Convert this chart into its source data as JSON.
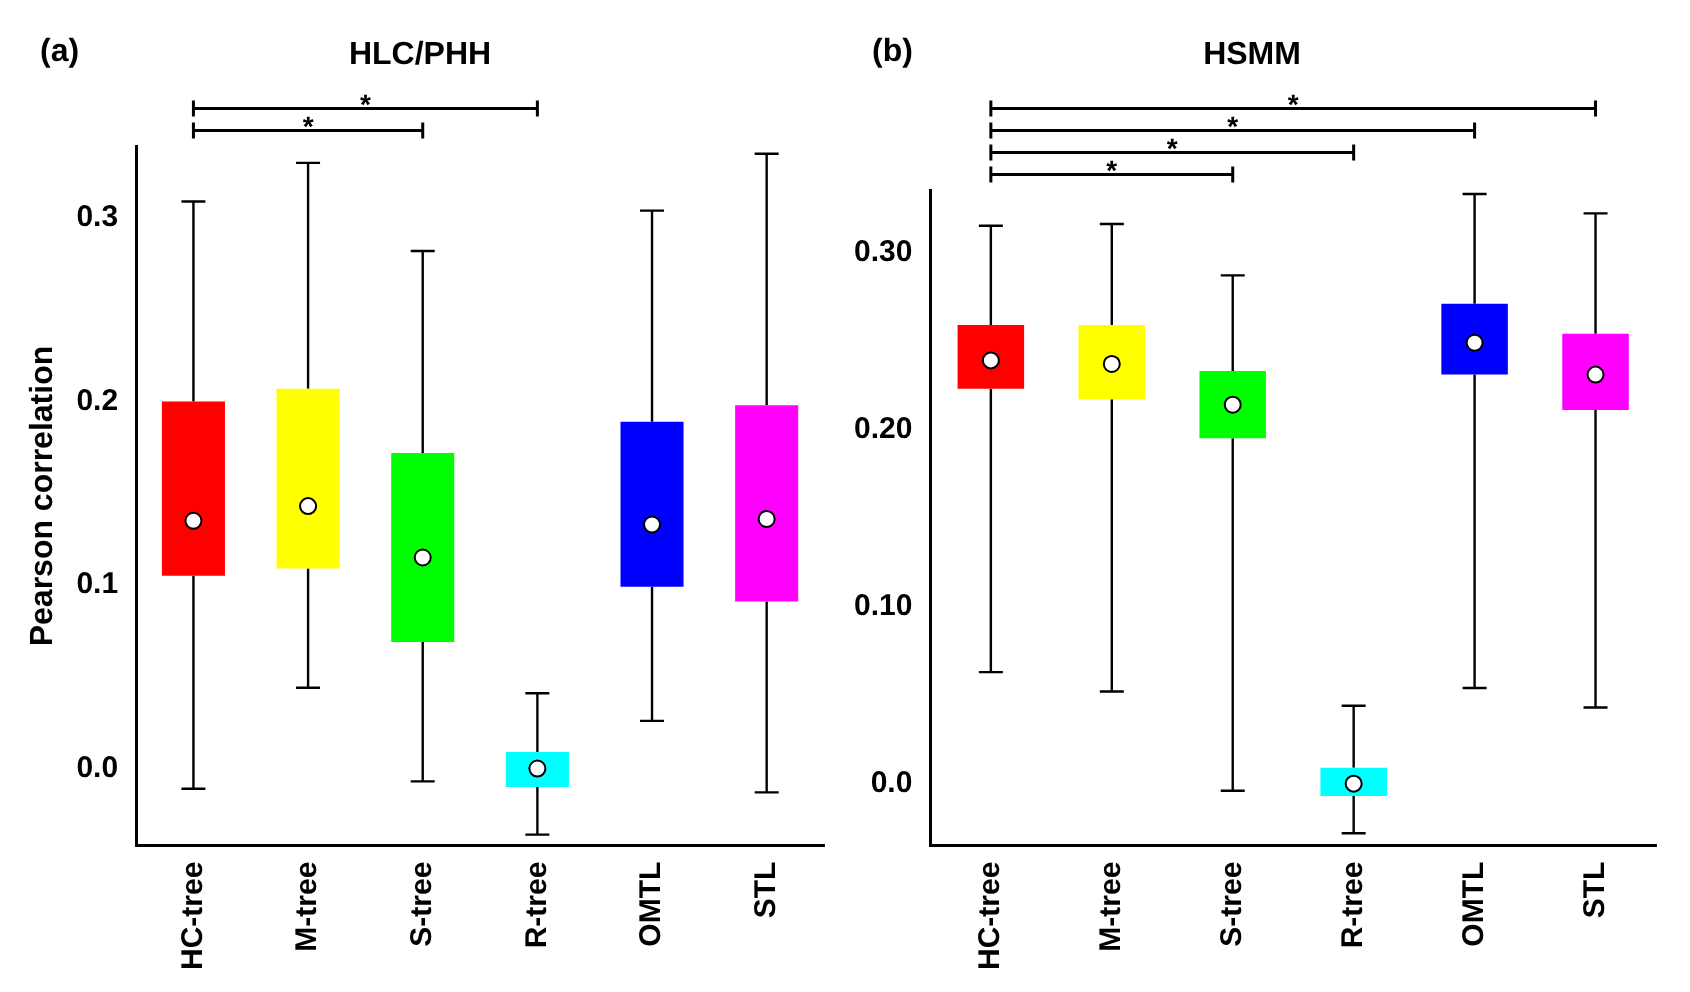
{
  "chart_data": [
    {
      "type": "box",
      "title": "HLC/PHH",
      "ylabel": "Pearson correlation",
      "annotations": [
        "(a)",
        "*",
        "*"
      ],
      "categories": [
        "HC-tree",
        "M-tree",
        "S-tree",
        "R-tree",
        "OMTL",
        "STL"
      ],
      "colors": [
        "#ff0000",
        "#ffff00",
        "#00ff00",
        "#00ffff",
        "#0000ff",
        "#ff00ff"
      ],
      "boxes": [
        {
          "low": -0.011,
          "q1": 0.105,
          "median": 0.135,
          "q3": 0.2,
          "high": 0.309
        },
        {
          "low": 0.044,
          "q1": 0.109,
          "median": 0.143,
          "q3": 0.207,
          "high": 0.33
        },
        {
          "low": -0.007,
          "q1": 0.069,
          "median": 0.115,
          "q3": 0.172,
          "high": 0.282
        },
        {
          "low": -0.036,
          "q1": -0.01,
          "median": 0,
          "q3": 0.009,
          "high": 0.041
        },
        {
          "low": 0.026,
          "q1": 0.099,
          "median": 0.133,
          "q3": 0.189,
          "high": 0.304
        },
        {
          "low": -0.013,
          "q1": 0.091,
          "median": 0.136,
          "q3": 0.198,
          "high": 0.335
        }
      ],
      "ylim": [
        -0.042,
        0.339
      ],
      "yticks": [
        {
          "value": 0,
          "label": "0.0"
        },
        0.1,
        0.2,
        0.3
      ],
      "grid": false
    },
    {
      "type": "box",
      "title": "HSMM",
      "annotations": [
        "(b)",
        "*",
        "*",
        "*",
        "*"
      ],
      "categories": [
        "HC-tree",
        "M-tree",
        "S-tree",
        "R-tree",
        "OMTL",
        "STL"
      ],
      "colors": [
        "#ff0000",
        "#ffff00",
        "#00ff00",
        "#00ffff",
        "#0000ff",
        "#ff00ff"
      ],
      "boxes": [
        {
          "low": 0.063,
          "q1": 0.223,
          "median": 0.239,
          "q3": 0.259,
          "high": 0.315
        },
        {
          "low": 0.052,
          "q1": 0.217,
          "median": 0.237,
          "q3": 0.259,
          "high": 0.316
        },
        {
          "low": -0.004,
          "q1": 0.195,
          "median": 0.214,
          "q3": 0.233,
          "high": 0.287
        },
        {
          "low": -0.028,
          "q1": -0.007,
          "median": 0,
          "q3": 0.009,
          "high": 0.044
        },
        {
          "low": 0.054,
          "q1": 0.231,
          "median": 0.249,
          "q3": 0.271,
          "high": 0.333
        },
        {
          "low": 0.043,
          "q1": 0.211,
          "median": 0.231,
          "q3": 0.254,
          "high": 0.322
        }
      ],
      "ylim": [
        -0.035,
        0.335
      ],
      "yticks": [
        {
          "value": 0,
          "label": "0.0"
        },
        {
          "value": 0.1,
          "label": "0.10"
        },
        {
          "value": 0.2,
          "label": "0.20"
        },
        {
          "value": 0.3,
          "label": "0.30"
        }
      ],
      "grid": false
    }
  ]
}
